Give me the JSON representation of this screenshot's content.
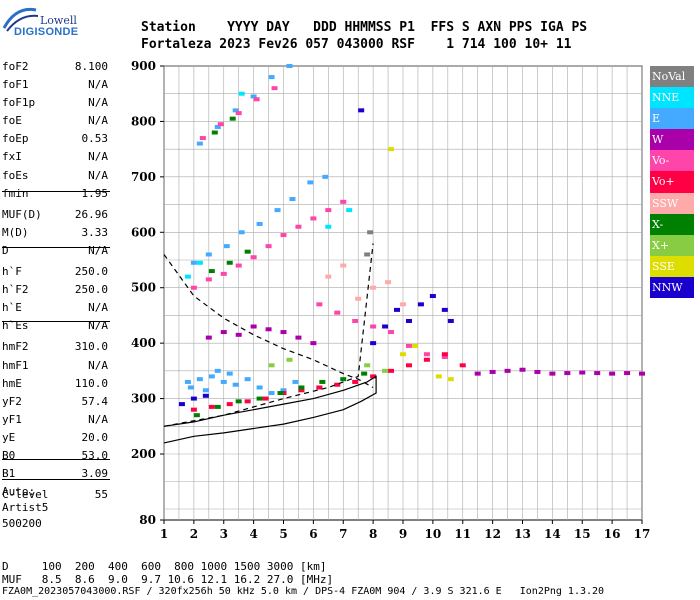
{
  "logo": {
    "line1": "Lowell",
    "line2": "DIGISONDE"
  },
  "header": {
    "labels": "Station    YYYY DAY   DDD HHMMSS P1  FFS S AXN PPS IGA PS",
    "values": "Fortaleza 2023 Fev26 057 043000 RSF    1 714 100 10+ 11"
  },
  "params_group1": [
    {
      "label": "foF2",
      "value": "8.100"
    },
    {
      "label": "foF1",
      "value": "N/A"
    },
    {
      "label": "foF1p",
      "value": "N/A"
    },
    {
      "label": "foE",
      "value": "N/A"
    },
    {
      "label": "foEp",
      "value": "0.53"
    },
    {
      "label": "fxI",
      "value": "N/A"
    },
    {
      "label": "foEs",
      "value": "N/A"
    },
    {
      "label": "fmin",
      "value": "1.95"
    }
  ],
  "params_group2": [
    {
      "label": "MUF(D)",
      "value": "26.96"
    },
    {
      "label": "M(D)",
      "value": "3.33"
    },
    {
      "label": "D",
      "value": "N/A"
    }
  ],
  "params_group3": [
    {
      "label": "h`F",
      "value": "250.0"
    },
    {
      "label": "h`F2",
      "value": "250.0"
    },
    {
      "label": "h`E",
      "value": "N/A"
    },
    {
      "label": "h`Es",
      "value": "N/A"
    }
  ],
  "params_group4": [
    {
      "label": "hmF2",
      "value": "310.0"
    },
    {
      "label": "hmF1",
      "value": "N/A"
    },
    {
      "label": "hmE",
      "value": "110.0"
    },
    {
      "label": "yF2",
      "value": "57.4"
    },
    {
      "label": "yF1",
      "value": "N/A"
    },
    {
      "label": "yE",
      "value": "20.0"
    },
    {
      "label": "B0",
      "value": "53.0"
    },
    {
      "label": "B1",
      "value": "3.09"
    }
  ],
  "params_group5": [
    {
      "label": "C-level",
      "value": "55"
    }
  ],
  "auto": {
    "line1": "Auto:",
    "line2": "Artist5",
    "line3": "500200"
  },
  "legend": [
    {
      "label": "NoVal",
      "color": "#808080"
    },
    {
      "label": "NNE",
      "color": "#00e5ff"
    },
    {
      "label": "E",
      "color": "#44aaff"
    },
    {
      "label": "W",
      "color": "#aa00aa"
    },
    {
      "label": "Vo-",
      "color": "#ff44aa"
    },
    {
      "label": "Vo+",
      "color": "#ff0044"
    },
    {
      "label": "SSW",
      "color": "#ffaaaa"
    },
    {
      "label": "X-",
      "color": "#008000"
    },
    {
      "label": "X+",
      "color": "#88cc44"
    },
    {
      "label": "SSE",
      "color": "#dddd00"
    },
    {
      "label": "NNW",
      "color": "#1a00cc"
    }
  ],
  "footer": {
    "line1": "D     100  200  400  600  800 1000 1500 3000 [km]",
    "line2": "MUF   8.5  8.6  9.0  9.7 10.6 12.1 16.2 27.0 [MHz]",
    "line3": "FZA0M_2023057043000.RSF / 320fx256h 50 kHz 5.0 km / DPS-4 FZA0M 904 / 3.9 S 321.6 E   Ion2Png 1.3.20"
  },
  "chart_data": {
    "type": "scatter",
    "title": "",
    "xlabel": "",
    "ylabel": "",
    "xlim": [
      1,
      17
    ],
    "ylim": [
      80,
      900
    ],
    "x_ticks": [
      1,
      2,
      3,
      4,
      5,
      6,
      7,
      8,
      9,
      10,
      11,
      12,
      13,
      14,
      15,
      16,
      17
    ],
    "y_ticks": [
      80,
      200,
      300,
      400,
      500,
      600,
      700,
      800,
      900
    ],
    "y_tick_labels": [
      "80",
      "200",
      "300",
      "400",
      "500",
      "600",
      "700",
      "800",
      "900"
    ],
    "grid": true,
    "legend_position": "right",
    "series": [
      {
        "name": "E",
        "color": "#44aaff",
        "points": [
          [
            1.8,
            330
          ],
          [
            2.2,
            335
          ],
          [
            2.6,
            340
          ],
          [
            3,
            330
          ],
          [
            3.4,
            325
          ],
          [
            3.8,
            335
          ],
          [
            4.2,
            320
          ],
          [
            4.6,
            310
          ],
          [
            5,
            315
          ],
          [
            5.4,
            330
          ],
          [
            1.9,
            320
          ],
          [
            2.4,
            315
          ],
          [
            2.8,
            350
          ],
          [
            3.2,
            345
          ],
          [
            2.0,
            545
          ],
          [
            2.5,
            560
          ],
          [
            3.1,
            575
          ],
          [
            3.6,
            600
          ],
          [
            4.2,
            615
          ],
          [
            4.8,
            640
          ],
          [
            5.3,
            660
          ],
          [
            5.9,
            690
          ],
          [
            6.4,
            700
          ],
          [
            2.2,
            760
          ],
          [
            2.8,
            790
          ],
          [
            3.4,
            820
          ],
          [
            4.0,
            845
          ],
          [
            4.6,
            880
          ],
          [
            5.2,
            900
          ]
        ]
      },
      {
        "name": "Vo-",
        "color": "#ff44aa",
        "points": [
          [
            2.0,
            500
          ],
          [
            2.5,
            515
          ],
          [
            3.0,
            525
          ],
          [
            3.5,
            540
          ],
          [
            4.0,
            555
          ],
          [
            4.5,
            575
          ],
          [
            5.0,
            595
          ],
          [
            5.5,
            610
          ],
          [
            6.0,
            625
          ],
          [
            6.5,
            640
          ],
          [
            7.0,
            655
          ],
          [
            2.3,
            770
          ],
          [
            2.9,
            795
          ],
          [
            3.5,
            815
          ],
          [
            4.1,
            840
          ],
          [
            4.7,
            860
          ],
          [
            6.2,
            470
          ],
          [
            6.8,
            455
          ],
          [
            7.4,
            440
          ],
          [
            8.0,
            430
          ],
          [
            8.6,
            420
          ],
          [
            9.2,
            395
          ],
          [
            9.8,
            380
          ],
          [
            10.4,
            375
          ]
        ]
      },
      {
        "name": "Vo+",
        "color": "#ff0044",
        "points": [
          [
            2.0,
            280
          ],
          [
            2.6,
            285
          ],
          [
            3.2,
            290
          ],
          [
            3.8,
            295
          ],
          [
            4.4,
            300
          ],
          [
            5.0,
            310
          ],
          [
            5.6,
            315
          ],
          [
            6.2,
            320
          ],
          [
            6.8,
            325
          ],
          [
            7.4,
            330
          ],
          [
            8.0,
            340
          ],
          [
            8.6,
            350
          ],
          [
            9.2,
            360
          ],
          [
            9.8,
            370
          ],
          [
            10.4,
            380
          ],
          [
            11.0,
            360
          ]
        ]
      },
      {
        "name": "W",
        "color": "#aa00aa",
        "points": [
          [
            2.5,
            410
          ],
          [
            3.0,
            420
          ],
          [
            3.5,
            415
          ],
          [
            4.0,
            430
          ],
          [
            4.5,
            425
          ],
          [
            5.0,
            420
          ],
          [
            5.5,
            410
          ],
          [
            6.0,
            400
          ],
          [
            11.5,
            345
          ],
          [
            12.0,
            348
          ],
          [
            12.5,
            350
          ],
          [
            13.0,
            352
          ],
          [
            13.5,
            348
          ],
          [
            14.0,
            345
          ],
          [
            14.5,
            346
          ],
          [
            15.0,
            347
          ],
          [
            15.5,
            346
          ],
          [
            16.0,
            345
          ],
          [
            16.5,
            346
          ],
          [
            17.0,
            345
          ]
        ]
      },
      {
        "name": "X-",
        "color": "#008000",
        "points": [
          [
            2.1,
            270
          ],
          [
            2.8,
            285
          ],
          [
            3.5,
            295
          ],
          [
            4.2,
            300
          ],
          [
            4.9,
            310
          ],
          [
            5.6,
            320
          ],
          [
            6.3,
            330
          ],
          [
            7.0,
            335
          ],
          [
            7.7,
            345
          ],
          [
            2.6,
            530
          ],
          [
            3.2,
            545
          ],
          [
            3.8,
            565
          ],
          [
            2.7,
            780
          ],
          [
            3.3,
            805
          ]
        ]
      },
      {
        "name": "NNW",
        "color": "#1a00cc",
        "points": [
          [
            1.6,
            290
          ],
          [
            2.0,
            300
          ],
          [
            2.4,
            305
          ],
          [
            8.0,
            400
          ],
          [
            8.4,
            430
          ],
          [
            8.8,
            460
          ],
          [
            9.2,
            440
          ],
          [
            9.6,
            470
          ],
          [
            10.0,
            485
          ],
          [
            10.4,
            460
          ],
          [
            10.6,
            440
          ],
          [
            7.6,
            820
          ]
        ]
      },
      {
        "name": "NNE",
        "color": "#00e5ff",
        "points": [
          [
            1.8,
            520
          ],
          [
            2.2,
            545
          ],
          [
            6.5,
            610
          ],
          [
            7.2,
            640
          ],
          [
            3.6,
            850
          ]
        ]
      },
      {
        "name": "SSW",
        "color": "#ffaaaa",
        "points": [
          [
            6.5,
            520
          ],
          [
            7.0,
            540
          ],
          [
            7.5,
            480
          ],
          [
            8.0,
            500
          ],
          [
            8.5,
            510
          ],
          [
            9.0,
            470
          ]
        ]
      },
      {
        "name": "SSE",
        "color": "#dddd00",
        "points": [
          [
            8.6,
            750
          ],
          [
            9.0,
            380
          ],
          [
            9.4,
            395
          ],
          [
            10.2,
            340
          ],
          [
            10.6,
            335
          ]
        ]
      },
      {
        "name": "X+",
        "color": "#88cc44",
        "points": [
          [
            4.6,
            360
          ],
          [
            5.2,
            370
          ],
          [
            7.8,
            360
          ],
          [
            8.4,
            350
          ]
        ]
      },
      {
        "name": "NoVal",
        "color": "#808080",
        "points": [
          [
            7.8,
            560
          ],
          [
            7.9,
            600
          ]
        ]
      }
    ],
    "curves": [
      {
        "style": "dashed",
        "color": "#000000",
        "points": [
          [
            1.0,
            560
          ],
          [
            2.0,
            485
          ],
          [
            3.0,
            445
          ],
          [
            4.0,
            415
          ],
          [
            5.0,
            390
          ],
          [
            6.0,
            370
          ],
          [
            7.0,
            345
          ],
          [
            7.5,
            335
          ],
          [
            8.0,
            320
          ]
        ]
      },
      {
        "style": "dashed",
        "color": "#000000",
        "points": [
          [
            1.0,
            250
          ],
          [
            3.0,
            270
          ],
          [
            5.0,
            300
          ],
          [
            6.5,
            320
          ],
          [
            7.5,
            340
          ],
          [
            8.0,
            580
          ]
        ]
      },
      {
        "style": "solid",
        "color": "#000000",
        "points": [
          [
            1.0,
            220
          ],
          [
            2.0,
            232
          ],
          [
            3.0,
            238
          ],
          [
            4.0,
            246
          ],
          [
            5.0,
            254
          ],
          [
            6.0,
            266
          ],
          [
            7.0,
            280
          ],
          [
            7.6,
            295
          ],
          [
            8.1,
            310
          ],
          [
            8.1,
            340
          ],
          [
            7.8,
            330
          ],
          [
            7.0,
            315
          ],
          [
            6.0,
            300
          ],
          [
            5.0,
            290
          ],
          [
            4.0,
            280
          ],
          [
            3.0,
            270
          ],
          [
            2.0,
            258
          ],
          [
            1.0,
            250
          ]
        ]
      }
    ]
  }
}
